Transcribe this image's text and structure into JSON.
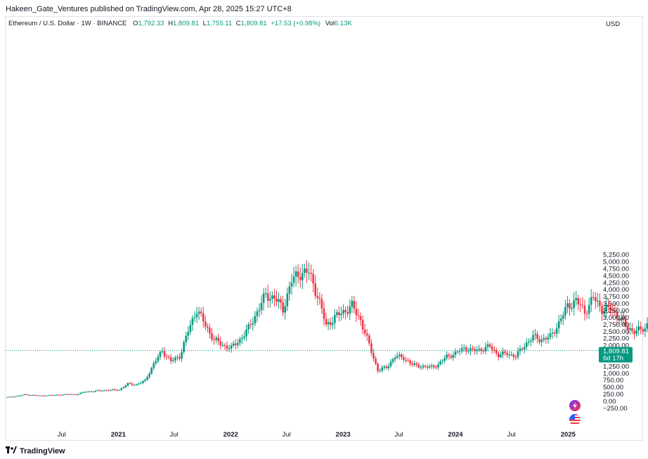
{
  "publisher_line": "Hakeen_Gate_Ventures published on TradingView.com, Apr 28, 2025 15:27 UTC+8",
  "legend": {
    "symbol": "Ethereum / U.S. Dollar · 1W · BINANCE",
    "o_label": "O",
    "o_value": "1,792.33",
    "h_label": "H",
    "h_value": "1,809.81",
    "l_label": "L",
    "l_value": "1,755.11",
    "c_label": "C",
    "c_value": "1,809.81",
    "change": "+17.53 (+0.98%)",
    "vol_label": "Vol",
    "vol_value": "6.13K"
  },
  "currency_label": "USD",
  "price_badge": {
    "price": "1,809.81",
    "countdown": "6d 17h"
  },
  "footer_brand": "TradingView",
  "colors": {
    "up": "#089981",
    "down": "#f23645",
    "axis_text": "#131722",
    "grid": "#e0e3eb",
    "badge": "#089981"
  },
  "icons": [
    "lightning-icon",
    "us-flag-icon",
    "tradingview-logo-icon"
  ],
  "chart_data": {
    "type": "candlestick",
    "title": "Ethereum / U.S. Dollar · 1W · BINANCE",
    "interval": "1W",
    "ylim": [
      -300,
      5300
    ],
    "y_ticks": [
      "5,250.00",
      "5,000.00",
      "4,750.00",
      "4,500.00",
      "4,250.00",
      "4,000.00",
      "3,750.00",
      "3,500.00",
      "3,250.00",
      "3,000.00",
      "2,750.00",
      "2,500.00",
      "2,250.00",
      "2,000.00",
      "1,750.00",
      "1,500.00",
      "1,250.00",
      "1,000.00",
      "750.00",
      "500.00",
      "250.00",
      "0.00",
      "−250.00"
    ],
    "y_tick_values": [
      5250,
      5000,
      4750,
      4500,
      4250,
      4000,
      3750,
      3500,
      3250,
      3000,
      2750,
      2500,
      2250,
      2000,
      1750,
      1500,
      1250,
      1000,
      750,
      500,
      250,
      0,
      -250
    ],
    "x_ticks": [
      {
        "label": "Jul",
        "date": "2020-07-01"
      },
      {
        "label": "2021",
        "date": "2021-01-01"
      },
      {
        "label": "Jul",
        "date": "2021-07-01"
      },
      {
        "label": "2022",
        "date": "2022-01-01"
      },
      {
        "label": "Jul",
        "date": "2022-07-01"
      },
      {
        "label": "2023",
        "date": "2023-01-01"
      },
      {
        "label": "Jul",
        "date": "2023-07-01"
      },
      {
        "label": "2024",
        "date": "2024-01-01"
      },
      {
        "label": "Jul",
        "date": "2024-07-01"
      },
      {
        "label": "2025",
        "date": "2025-01-01"
      }
    ],
    "last_price": 1809.81,
    "grid": false,
    "series": [
      {
        "weeks_per_point": 4,
        "start": "2020-01-06",
        "close": [
          140,
          170,
          230,
          210,
          190,
          205,
          220,
          240,
          230,
          330,
          350,
          380,
          390,
          400,
          610,
          590,
          730,
          1330,
          1800,
          1420,
          1600,
          2500,
          3300,
          2700,
          2200,
          2000,
          1900,
          2200,
          2600,
          3200,
          3800,
          3700,
          3300,
          4300,
          4600,
          4600,
          3800,
          2700,
          3000,
          3200,
          3400,
          2900,
          2000,
          1100,
          1200,
          1600,
          1550,
          1300,
          1250,
          1200,
          1300,
          1600,
          1700,
          1900,
          1800,
          1850,
          1950,
          1650,
          1700,
          1600,
          2000,
          2300,
          2200,
          2300,
          2800,
          3400,
          3600,
          3200,
          3700,
          3300,
          3300,
          3000,
          2600,
          2500,
          2600,
          3300,
          3900,
          3700,
          3200,
          2700,
          2400,
          1800,
          1600,
          1800
        ]
      }
    ]
  }
}
